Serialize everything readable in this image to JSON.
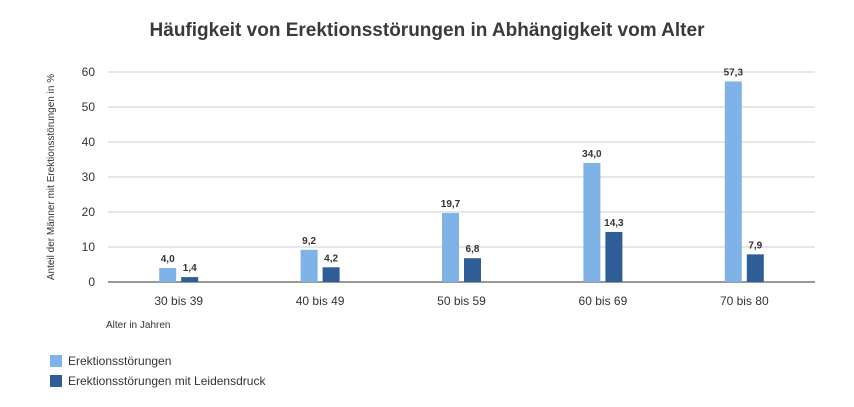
{
  "chart_data": {
    "type": "bar",
    "title": "Häufigkeit von Erektionsstörungen in Abhängigkeit vom Alter",
    "xlabel": "Alter in Jahren",
    "ylabel": "Anteil der Männer mit Erektionsstörungen in %",
    "categories": [
      "30 bis 39",
      "40 bis 49",
      "50 bis 59",
      "60 bis 69",
      "70 bis 80"
    ],
    "ylim": [
      0,
      60
    ],
    "yticks": [
      0,
      10,
      20,
      30,
      40,
      50,
      60
    ],
    "grid": true,
    "legend": "bottom-left",
    "series": [
      {
        "name": "Erektionsstörungen",
        "values": [
          4.0,
          9.2,
          19.7,
          34.0,
          57.3
        ],
        "labels": [
          "4,0",
          "9,2",
          "19,7",
          "34,0",
          "57,3"
        ],
        "color": "#7fb2e6"
      },
      {
        "name": "Erektionsstörungen mit Leidensdruck",
        "values": [
          1.4,
          4.2,
          6.8,
          14.3,
          7.9
        ],
        "labels": [
          "1,4",
          "4,2",
          "6,8",
          "14,3",
          "7,9"
        ],
        "color": "#2f5d98"
      }
    ]
  }
}
